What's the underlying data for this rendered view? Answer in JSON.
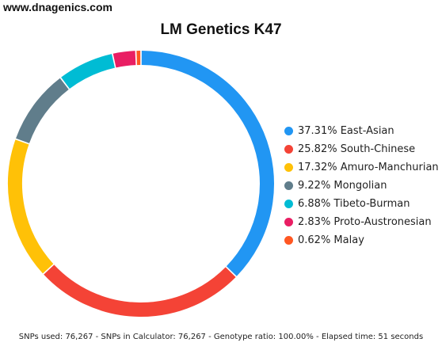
{
  "site": {
    "url": "www.dnagenics.com"
  },
  "chart_data": {
    "type": "pie",
    "style": "donut",
    "title": "LM Genetics K47",
    "legend_position": "right",
    "slices": [
      {
        "label": "37.31% East-Asian",
        "name": "East-Asian",
        "value": 37.31,
        "color": "#2196f3"
      },
      {
        "label": "25.82% South-Chinese",
        "name": "South-Chinese",
        "value": 25.82,
        "color": "#f44336"
      },
      {
        "label": "17.32% Amuro-Manchurian",
        "name": "Amuro-Manchurian",
        "value": 17.32,
        "color": "#ffc107"
      },
      {
        "label": "9.22% Mongolian",
        "name": "Mongolian",
        "value": 9.22,
        "color": "#607d8b"
      },
      {
        "label": "6.88% Tibeto-Burman",
        "name": "Tibeto-Burman",
        "value": 6.88,
        "color": "#00bcd4"
      },
      {
        "label": "2.83% Proto-Austronesian",
        "name": "Proto-Austronesian",
        "value": 2.83,
        "color": "#e91e63"
      },
      {
        "label": "0.62% Malay",
        "name": "Malay",
        "value": 0.62,
        "color": "#ff5722"
      }
    ]
  },
  "footer": {
    "text": "SNPs used: 76,267 - SNPs in Calculator: 76,267 - Genotype ratio: 100.00% - Elapsed time: 51 seconds"
  }
}
